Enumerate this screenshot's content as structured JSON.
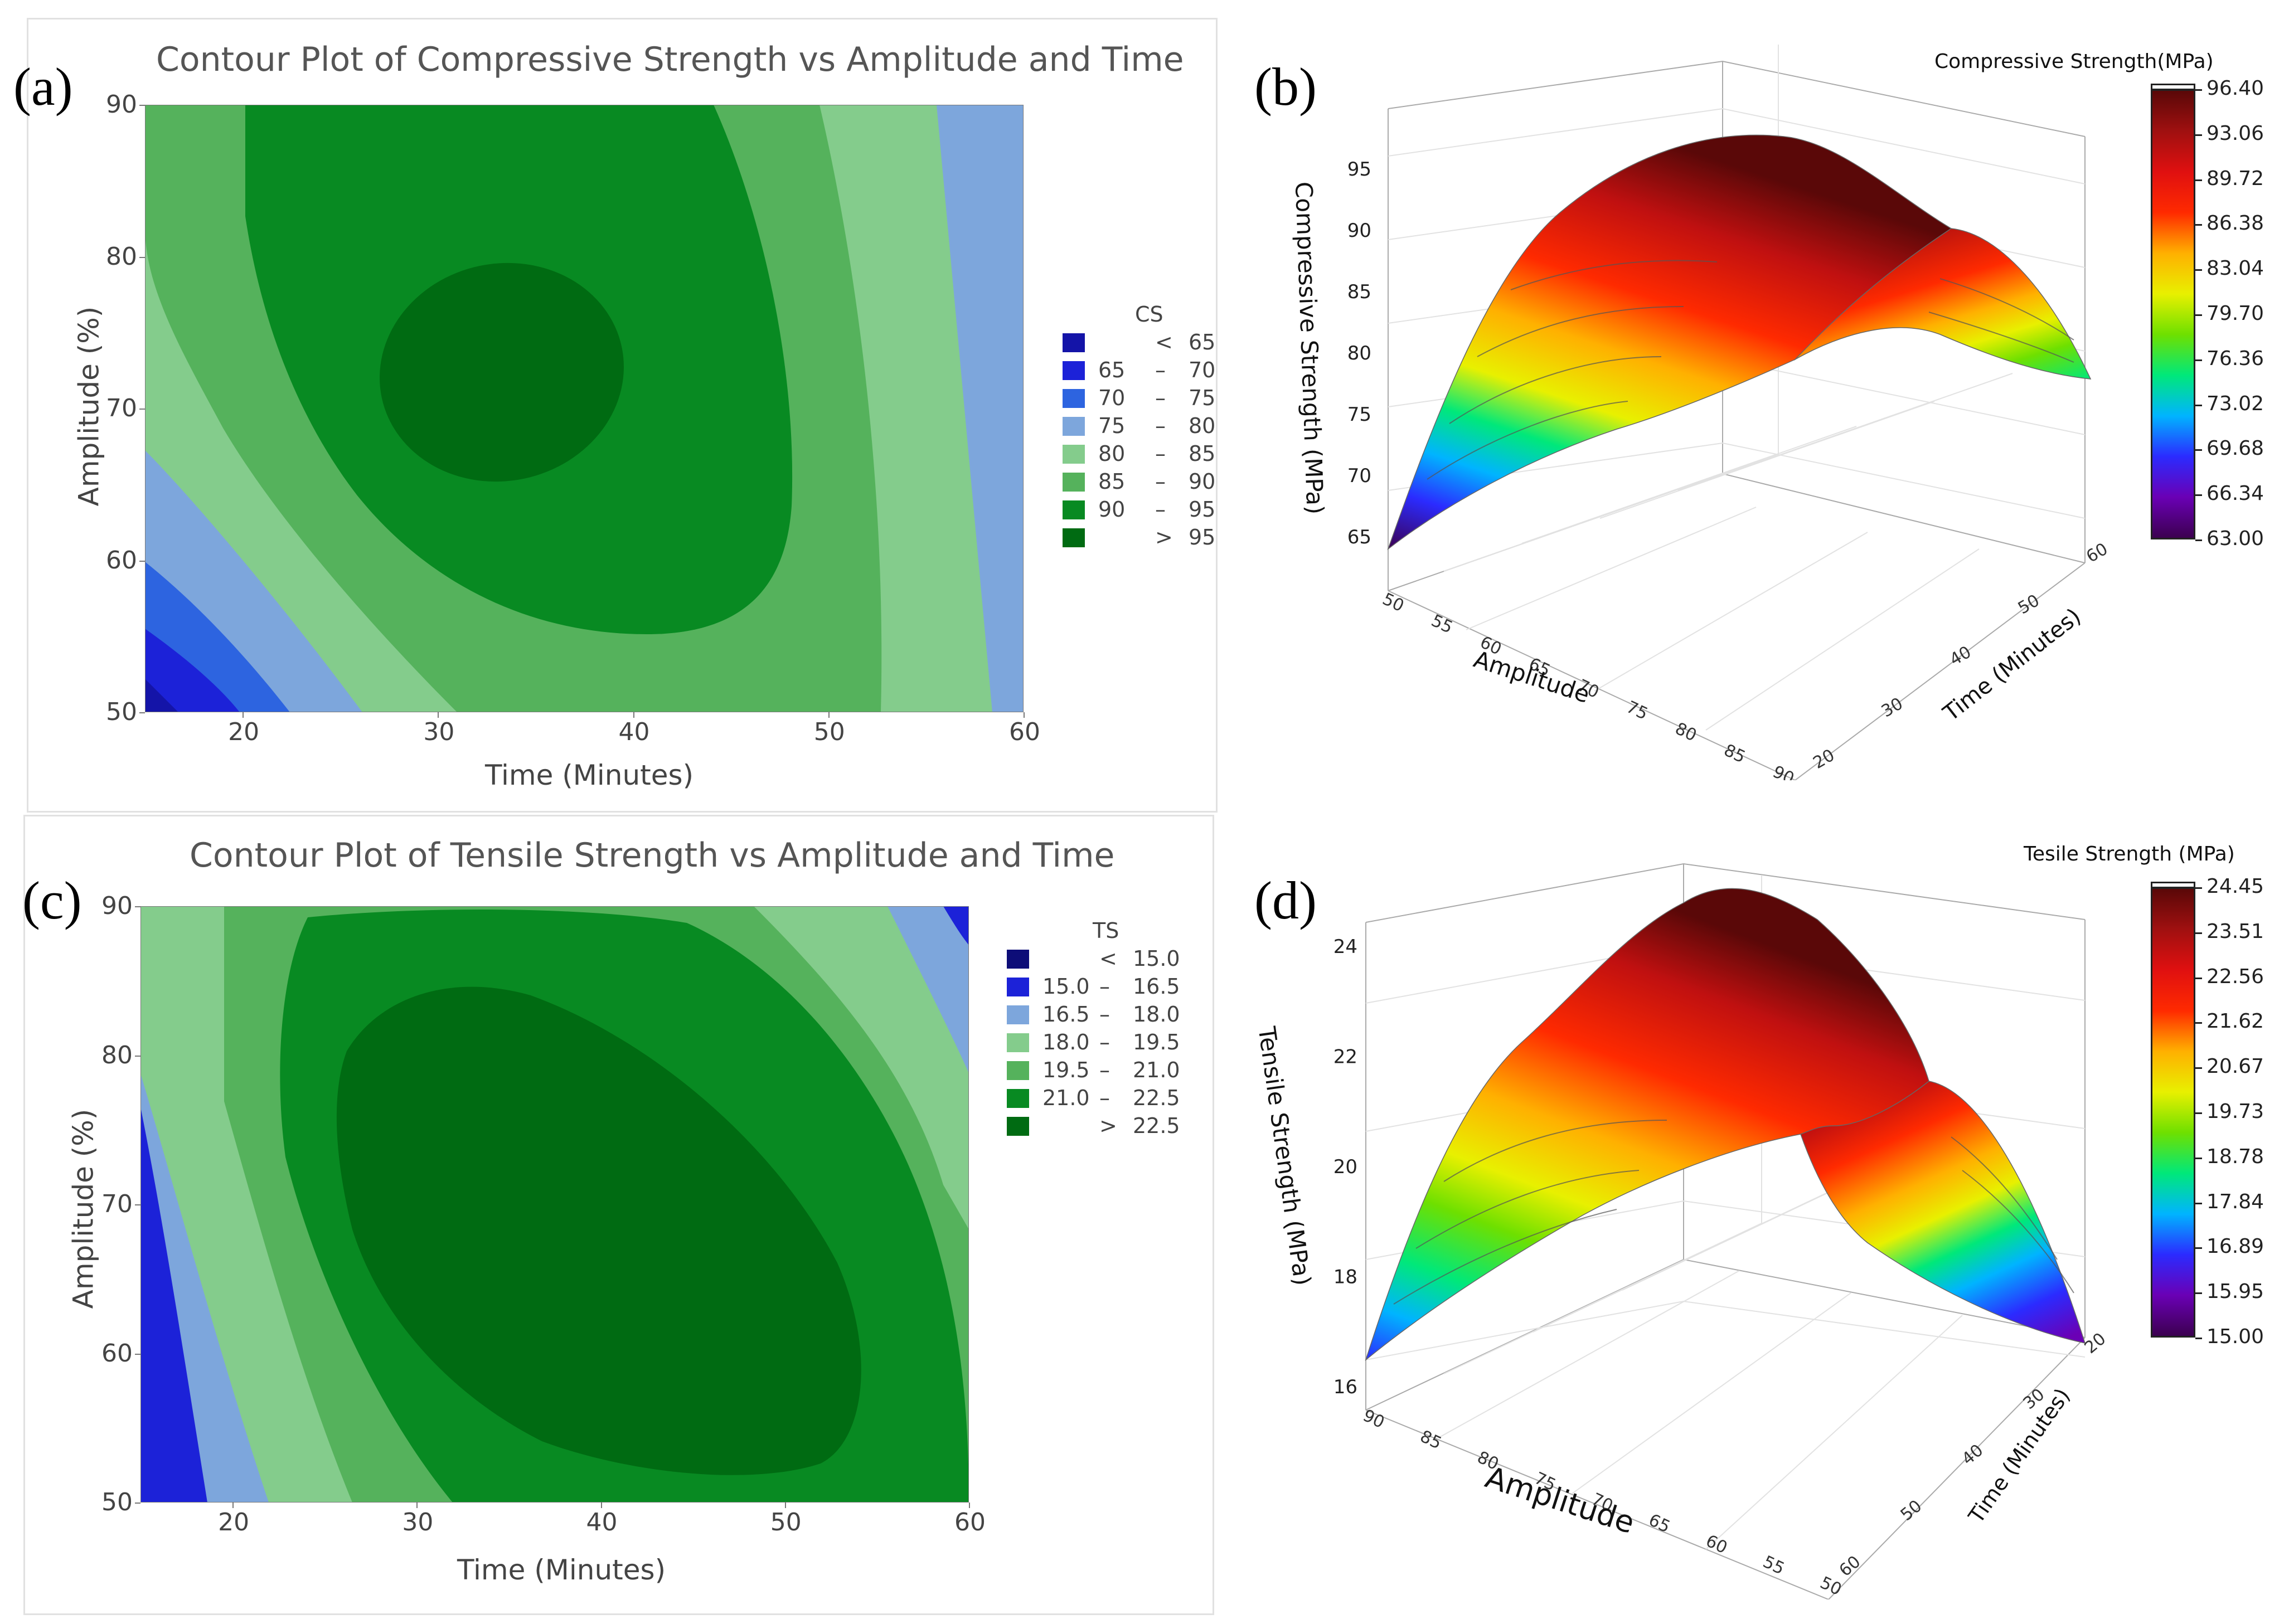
{
  "panels": {
    "a": "(a)",
    "b": "(b)",
    "c": "(c)",
    "d": "(d)"
  },
  "colors": {
    "cs_bands": [
      "#1414a8",
      "#1c22d8",
      "#2d64e0",
      "#7da6dc",
      "#84cc8c",
      "#55b25c",
      "#088a22",
      "#006b12"
    ],
    "ts_bands": [
      "#0d0d78",
      "#1c22d8",
      "#7da6dc",
      "#84cc8c",
      "#55b25c",
      "#088a22",
      "#006b12"
    ],
    "colormap": [
      "#3c0050",
      "#6a00b5",
      "#2b2bff",
      "#00b4ff",
      "#00e87a",
      "#6ee000",
      "#e8f000",
      "#ffb000",
      "#ff2a00",
      "#e01010",
      "#a01010",
      "#5a0808"
    ]
  },
  "chart_data": [
    {
      "id": "a",
      "type": "heatmap",
      "subtype": "contour",
      "title": "Contour Plot of Compressive Strength vs Amplitude and Time",
      "xlabel": "Time (Minutes)",
      "ylabel": "Amplitude (%)",
      "xlim": [
        15,
        60
      ],
      "ylim": [
        50,
        90
      ],
      "xticks": [
        "20",
        "30",
        "40",
        "50",
        "60"
      ],
      "yticks": [
        "50",
        "60",
        "70",
        "80",
        "90"
      ],
      "legend_title": "CS",
      "legend": [
        {
          "lo": "",
          "sep": "<",
          "hi": "65"
        },
        {
          "lo": "65",
          "sep": "–",
          "hi": "70"
        },
        {
          "lo": "70",
          "sep": "–",
          "hi": "75"
        },
        {
          "lo": "75",
          "sep": "–",
          "hi": "80"
        },
        {
          "lo": "80",
          "sep": "–",
          "hi": "85"
        },
        {
          "lo": "85",
          "sep": "–",
          "hi": "90"
        },
        {
          "lo": "90",
          "sep": "–",
          "hi": "95"
        },
        {
          "lo": "",
          "sep": ">",
          "hi": "95"
        }
      ],
      "levels": [
        65,
        70,
        75,
        80,
        85,
        90,
        95
      ],
      "peak": {
        "time": 33,
        "amplitude": 74,
        "value": 96.4
      }
    },
    {
      "id": "b",
      "type": "surface",
      "colorbar_title": "Compressive Strength(MPa)",
      "zlabel": "Compressive Strength (MPa)",
      "xlabel": "Amplitude",
      "ylabel": "Time (Minutes)",
      "zticks": [
        "65",
        "70",
        "75",
        "80",
        "85",
        "90",
        "95"
      ],
      "xticks": [
        "50",
        "55",
        "60",
        "65",
        "70",
        "75",
        "80",
        "85",
        "90"
      ],
      "yticks": [
        "20",
        "30",
        "40",
        "50",
        "60"
      ],
      "colorbar_ticks": [
        "96.40",
        "93.06",
        "89.72",
        "86.38",
        "83.04",
        "79.70",
        "76.36",
        "73.02",
        "69.68",
        "66.34",
        "63.00"
      ],
      "zlim": [
        63.0,
        96.4
      ]
    },
    {
      "id": "c",
      "type": "heatmap",
      "subtype": "contour",
      "title": "Contour Plot of Tensile Strength vs Amplitude and Time",
      "xlabel": "Time (Minutes)",
      "ylabel": "Amplitude (%)",
      "xlim": [
        15,
        60
      ],
      "ylim": [
        50,
        90
      ],
      "xticks": [
        "20",
        "30",
        "40",
        "50",
        "60"
      ],
      "yticks": [
        "50",
        "60",
        "70",
        "80",
        "90"
      ],
      "legend_title": "TS",
      "legend": [
        {
          "lo": "",
          "sep": "<",
          "hi": "15.0"
        },
        {
          "lo": "15.0",
          "sep": "–",
          "hi": "16.5"
        },
        {
          "lo": "16.5",
          "sep": "–",
          "hi": "18.0"
        },
        {
          "lo": "18.0",
          "sep": "–",
          "hi": "19.5"
        },
        {
          "lo": "19.5",
          "sep": "–",
          "hi": "21.0"
        },
        {
          "lo": "21.0",
          "sep": "–",
          "hi": "22.5"
        },
        {
          "lo": "",
          "sep": ">",
          "hi": "22.5"
        }
      ],
      "levels": [
        15.0,
        16.5,
        18.0,
        19.5,
        21.0,
        22.5
      ],
      "peak": {
        "time": 43,
        "amplitude": 67,
        "value": 24.45
      }
    },
    {
      "id": "d",
      "type": "surface",
      "colorbar_title": "Tesile Strength (MPa)",
      "zlabel": "Tensile Strength (MPa)",
      "xlabel": "Amplitude",
      "ylabel": "Time (Minutes)",
      "zticks": [
        "16",
        "18",
        "20",
        "22",
        "24"
      ],
      "xticks": [
        "90",
        "85",
        "80",
        "75",
        "70",
        "65",
        "60",
        "55",
        "50"
      ],
      "yticks": [
        "20",
        "30",
        "40",
        "50",
        "60"
      ],
      "colorbar_ticks": [
        "24.45",
        "23.51",
        "22.56",
        "21.62",
        "20.67",
        "19.73",
        "18.78",
        "17.84",
        "16.89",
        "15.95",
        "15.00"
      ],
      "zlim": [
        15.0,
        24.45
      ]
    }
  ]
}
